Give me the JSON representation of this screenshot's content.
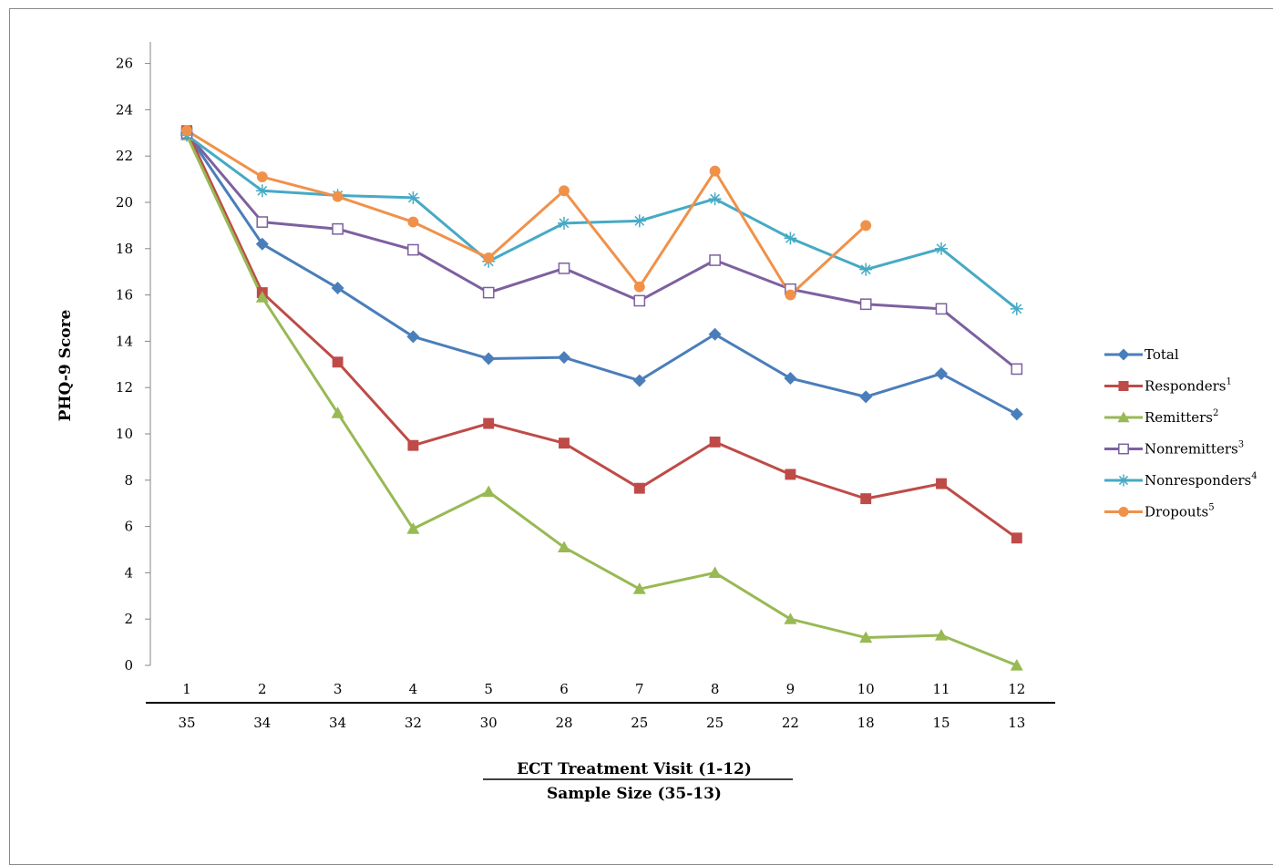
{
  "chart_data": {
    "type": "line",
    "categories": [
      "1",
      "2",
      "3",
      "4",
      "5",
      "6",
      "7",
      "8",
      "9",
      "10",
      "11",
      "12"
    ],
    "sample_sizes": [
      "35",
      "34",
      "34",
      "32",
      "30",
      "28",
      "25",
      "25",
      "22",
      "18",
      "15",
      "13"
    ],
    "ylabel": "PHQ-9 Score",
    "xlabel_line1": "ECT Treatment Visit (1-12)",
    "xlabel_line2": "Sample Size (35-13)",
    "ylim": [
      0,
      26
    ],
    "yticks": [
      "0",
      "2",
      "4",
      "6",
      "8",
      "10",
      "12",
      "14",
      "16",
      "18",
      "20",
      "22",
      "24",
      "26"
    ],
    "grid": false,
    "legend_position": "right",
    "series": [
      {
        "name": "Total",
        "sup": "",
        "color": "#4a7ebb",
        "marker": "diamond",
        "values": [
          23.0,
          18.2,
          16.3,
          14.2,
          13.25,
          13.3,
          12.3,
          14.3,
          12.4,
          11.6,
          12.6,
          10.85
        ]
      },
      {
        "name": "Responders",
        "sup": "1",
        "color": "#be4b48",
        "marker": "square",
        "values": [
          23.1,
          16.1,
          13.1,
          9.5,
          10.45,
          9.6,
          7.65,
          9.65,
          8.25,
          7.2,
          7.85,
          5.5
        ]
      },
      {
        "name": "Remitters",
        "sup": "2",
        "color": "#98b954",
        "marker": "triangle",
        "values": [
          22.9,
          15.9,
          10.9,
          5.9,
          7.5,
          5.1,
          3.3,
          4.0,
          2.0,
          1.2,
          1.3,
          0.0
        ]
      },
      {
        "name": "Nonremitters",
        "sup": "3",
        "color": "#7d60a0",
        "marker": "open-square",
        "values": [
          23.0,
          19.15,
          18.85,
          17.95,
          16.1,
          17.15,
          15.75,
          17.5,
          16.25,
          15.6,
          15.4,
          12.8
        ]
      },
      {
        "name": "Nonresponders",
        "sup": "4",
        "color": "#46aac5",
        "marker": "asterisk",
        "values": [
          22.9,
          20.5,
          20.3,
          20.2,
          17.45,
          19.1,
          19.2,
          20.15,
          18.45,
          17.1,
          18.0,
          15.4
        ]
      },
      {
        "name": "Dropouts",
        "sup": "5",
        "color": "#f0914a",
        "marker": "circle",
        "values": [
          23.1,
          21.1,
          20.25,
          19.15,
          17.6,
          20.5,
          16.35,
          21.35,
          16.0,
          19.0,
          null,
          null
        ]
      }
    ]
  }
}
